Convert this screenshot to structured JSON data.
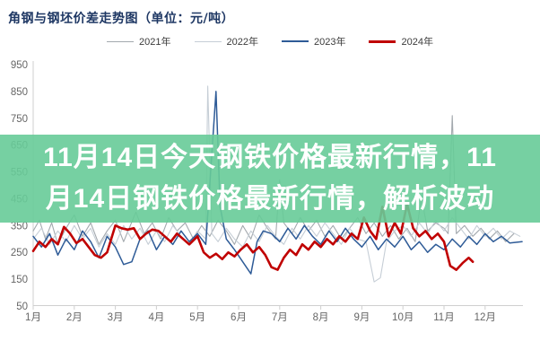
{
  "chart": {
    "title": "角钢与钢坯价差走势图（单位：元/吨）",
    "title_color": "#1f3864",
    "legend": [
      {
        "label": "2021年",
        "color": "#a3a9ae",
        "weight": 1
      },
      {
        "label": "2022年",
        "color": "#c6ced6",
        "weight": 1
      },
      {
        "label": "2023年",
        "color": "#2e5b97",
        "weight": 2
      },
      {
        "label": "2024年",
        "color": "#c00000",
        "weight": 3
      }
    ],
    "axis_color": "#cfcfcf",
    "tick_label_color": "#666666"
  },
  "overlay": {
    "lines": [
      "11月14日今天钢铁价格最新行情，11",
      "月14日钢铁价格最新行情，解析波动"
    ],
    "background": "rgba(103,203,152,0.90)",
    "text_color": "#ffffff"
  },
  "chart_data": {
    "type": "line",
    "title": "角钢与钢坯价差走势图（单位：元/吨）",
    "xlabel": "",
    "ylabel": "元/吨",
    "categories": [
      "1月",
      "2月",
      "3月",
      "4月",
      "5月",
      "6月",
      "7月",
      "8月",
      "9月",
      "10月",
      "11月",
      "12月"
    ],
    "y_ticks": [
      50,
      150,
      250,
      350,
      450,
      550,
      650,
      750,
      850,
      950
    ],
    "ylim": [
      50,
      950
    ],
    "xlim": [
      1,
      13.1
    ],
    "grid": false,
    "legend_position": "top",
    "series": [
      {
        "name": "2021年",
        "color": "#a3a9ae",
        "width": 1.1,
        "points": [
          [
            1.0,
            330
          ],
          [
            1.15,
            370
          ],
          [
            1.3,
            300
          ],
          [
            1.45,
            360
          ],
          [
            1.6,
            280
          ],
          [
            1.8,
            340
          ],
          [
            2.0,
            390
          ],
          [
            2.2,
            310
          ],
          [
            2.4,
            360
          ],
          [
            2.6,
            280
          ],
          [
            2.8,
            330
          ],
          [
            3.0,
            370
          ],
          [
            3.2,
            290
          ],
          [
            3.5,
            400
          ],
          [
            3.7,
            320
          ],
          [
            3.9,
            360
          ],
          [
            4.1,
            300
          ],
          [
            4.3,
            380
          ],
          [
            4.5,
            330
          ],
          [
            4.7,
            360
          ],
          [
            4.9,
            300
          ],
          [
            5.1,
            350
          ],
          [
            5.3,
            310
          ],
          [
            5.5,
            370
          ],
          [
            5.7,
            330
          ],
          [
            5.9,
            280
          ],
          [
            6.1,
            350
          ],
          [
            6.3,
            300
          ],
          [
            6.5,
            390
          ],
          [
            6.7,
            340
          ],
          [
            6.9,
            300
          ],
          [
            7.0,
            520
          ],
          [
            7.1,
            360
          ],
          [
            7.3,
            320
          ],
          [
            7.5,
            380
          ],
          [
            7.7,
            330
          ],
          [
            7.9,
            370
          ],
          [
            8.1,
            310
          ],
          [
            8.3,
            350
          ],
          [
            8.5,
            300
          ],
          [
            8.7,
            340
          ],
          [
            8.9,
            380
          ],
          [
            9.1,
            320
          ],
          [
            9.3,
            360
          ],
          [
            9.5,
            310
          ],
          [
            9.7,
            350
          ],
          [
            9.9,
            300
          ],
          [
            10.1,
            340
          ],
          [
            10.3,
            290
          ],
          [
            10.45,
            460
          ],
          [
            10.6,
            330
          ],
          [
            10.8,
            360
          ],
          [
            11.0,
            340
          ],
          [
            11.1,
            320
          ],
          [
            11.2,
            760
          ],
          [
            11.3,
            320
          ],
          [
            11.5,
            350
          ],
          [
            11.7,
            310
          ],
          [
            11.9,
            340
          ],
          [
            12.1,
            300
          ],
          [
            12.3,
            330
          ],
          [
            12.5,
            290
          ],
          [
            12.7,
            320
          ]
        ]
      },
      {
        "name": "2022年",
        "color": "#c6ced6",
        "width": 1.1,
        "points": [
          [
            1.0,
            300
          ],
          [
            1.2,
            340
          ],
          [
            1.4,
            280
          ],
          [
            1.6,
            330
          ],
          [
            1.8,
            290
          ],
          [
            2.0,
            350
          ],
          [
            2.2,
            300
          ],
          [
            2.4,
            340
          ],
          [
            2.6,
            270
          ],
          [
            2.8,
            320
          ],
          [
            3.0,
            280
          ],
          [
            3.2,
            350
          ],
          [
            3.4,
            300
          ],
          [
            3.6,
            340
          ],
          [
            3.8,
            280
          ],
          [
            4.0,
            330
          ],
          [
            4.2,
            290
          ],
          [
            4.4,
            350
          ],
          [
            4.6,
            310
          ],
          [
            4.8,
            280
          ],
          [
            5.0,
            330
          ],
          [
            5.2,
            300
          ],
          [
            5.25,
            870
          ],
          [
            5.35,
            320
          ],
          [
            5.5,
            290
          ],
          [
            5.7,
            340
          ],
          [
            5.9,
            300
          ],
          [
            6.1,
            270
          ],
          [
            6.3,
            330
          ],
          [
            6.5,
            290
          ],
          [
            6.7,
            350
          ],
          [
            6.9,
            310
          ],
          [
            7.1,
            280
          ],
          [
            7.3,
            340
          ],
          [
            7.5,
            300
          ],
          [
            7.7,
            350
          ],
          [
            7.9,
            310
          ],
          [
            8.1,
            360
          ],
          [
            8.3,
            320
          ],
          [
            8.5,
            280
          ],
          [
            8.7,
            340
          ],
          [
            8.9,
            300
          ],
          [
            9.1,
            290
          ],
          [
            9.3,
            140
          ],
          [
            9.45,
            155
          ],
          [
            9.6,
            290
          ],
          [
            9.8,
            330
          ],
          [
            10.0,
            350
          ],
          [
            10.2,
            310
          ],
          [
            10.4,
            360
          ],
          [
            10.6,
            320
          ],
          [
            10.8,
            370
          ],
          [
            11.0,
            330
          ],
          [
            11.2,
            380
          ],
          [
            11.4,
            340
          ],
          [
            11.6,
            300
          ],
          [
            11.8,
            350
          ],
          [
            12.0,
            310
          ],
          [
            12.2,
            340
          ],
          [
            12.4,
            300
          ],
          [
            12.6,
            330
          ],
          [
            12.85,
            310
          ]
        ]
      },
      {
        "name": "2023年",
        "color": "#2e5b97",
        "width": 1.5,
        "points": [
          [
            1.0,
            310
          ],
          [
            1.2,
            270
          ],
          [
            1.4,
            320
          ],
          [
            1.6,
            240
          ],
          [
            1.8,
            300
          ],
          [
            2.0,
            260
          ],
          [
            2.2,
            330
          ],
          [
            2.4,
            290
          ],
          [
            2.6,
            230
          ],
          [
            2.8,
            310
          ],
          [
            3.0,
            270
          ],
          [
            3.2,
            205
          ],
          [
            3.4,
            215
          ],
          [
            3.6,
            300
          ],
          [
            3.8,
            330
          ],
          [
            4.0,
            260
          ],
          [
            4.2,
            310
          ],
          [
            4.4,
            280
          ],
          [
            4.6,
            330
          ],
          [
            4.8,
            290
          ],
          [
            5.0,
            320
          ],
          [
            5.2,
            280
          ],
          [
            5.45,
            850
          ],
          [
            5.55,
            420
          ],
          [
            5.7,
            300
          ],
          [
            5.9,
            260
          ],
          [
            6.3,
            170
          ],
          [
            6.45,
            290
          ],
          [
            6.6,
            330
          ],
          [
            6.8,
            320
          ],
          [
            7.0,
            290
          ],
          [
            7.2,
            340
          ],
          [
            7.4,
            300
          ],
          [
            7.6,
            350
          ],
          [
            7.8,
            310
          ],
          [
            8.0,
            280
          ],
          [
            8.2,
            330
          ],
          [
            8.4,
            290
          ],
          [
            8.6,
            340
          ],
          [
            8.8,
            300
          ],
          [
            9.0,
            270
          ],
          [
            9.2,
            310
          ],
          [
            9.4,
            260
          ],
          [
            9.6,
            300
          ],
          [
            9.8,
            270
          ],
          [
            10.0,
            310
          ],
          [
            10.2,
            260
          ],
          [
            10.4,
            290
          ],
          [
            10.6,
            250
          ],
          [
            10.8,
            280
          ],
          [
            11.0,
            260
          ],
          [
            11.2,
            300
          ],
          [
            11.4,
            270
          ],
          [
            11.6,
            310
          ],
          [
            11.8,
            280
          ],
          [
            12.0,
            320
          ],
          [
            12.2,
            290
          ],
          [
            12.4,
            310
          ],
          [
            12.6,
            285
          ],
          [
            12.9,
            290
          ]
        ]
      },
      {
        "name": "2024年",
        "color": "#c00000",
        "width": 2.6,
        "points": [
          [
            1.0,
            255
          ],
          [
            1.15,
            290
          ],
          [
            1.3,
            270
          ],
          [
            1.45,
            300
          ],
          [
            1.6,
            280
          ],
          [
            1.75,
            345
          ],
          [
            1.9,
            320
          ],
          [
            2.05,
            285
          ],
          [
            2.2,
            300
          ],
          [
            2.35,
            270
          ],
          [
            2.5,
            240
          ],
          [
            2.65,
            230
          ],
          [
            2.8,
            250
          ],
          [
            3.0,
            350
          ],
          [
            3.15,
            340
          ],
          [
            3.3,
            335
          ],
          [
            3.45,
            340
          ],
          [
            3.6,
            300
          ],
          [
            3.75,
            320
          ],
          [
            3.9,
            335
          ],
          [
            4.05,
            330
          ],
          [
            4.2,
            310
          ],
          [
            4.35,
            290
          ],
          [
            4.5,
            320
          ],
          [
            4.65,
            300
          ],
          [
            4.8,
            280
          ],
          [
            5.0,
            310
          ],
          [
            5.15,
            250
          ],
          [
            5.3,
            230
          ],
          [
            5.45,
            245
          ],
          [
            5.6,
            225
          ],
          [
            5.75,
            250
          ],
          [
            5.9,
            235
          ],
          [
            6.05,
            260
          ],
          [
            6.2,
            280
          ],
          [
            6.35,
            250
          ],
          [
            6.5,
            270
          ],
          [
            6.65,
            240
          ],
          [
            6.8,
            195
          ],
          [
            6.95,
            185
          ],
          [
            7.1,
            230
          ],
          [
            7.25,
            260
          ],
          [
            7.4,
            240
          ],
          [
            7.55,
            280
          ],
          [
            7.7,
            260
          ],
          [
            7.85,
            290
          ],
          [
            8.0,
            270
          ],
          [
            8.15,
            300
          ],
          [
            8.3,
            280
          ],
          [
            8.45,
            310
          ],
          [
            8.6,
            290
          ],
          [
            8.75,
            320
          ],
          [
            8.9,
            300
          ],
          [
            9.05,
            380
          ],
          [
            9.2,
            330
          ],
          [
            9.35,
            300
          ],
          [
            9.5,
            420
          ],
          [
            9.65,
            310
          ],
          [
            9.8,
            360
          ],
          [
            9.95,
            320
          ],
          [
            10.1,
            430
          ],
          [
            10.25,
            340
          ],
          [
            10.4,
            310
          ],
          [
            10.55,
            330
          ],
          [
            10.7,
            300
          ],
          [
            10.85,
            320
          ],
          [
            11.0,
            290
          ],
          [
            11.15,
            200
          ],
          [
            11.3,
            185
          ],
          [
            11.45,
            210
          ],
          [
            11.6,
            230
          ],
          [
            11.7,
            215
          ]
        ]
      }
    ]
  }
}
